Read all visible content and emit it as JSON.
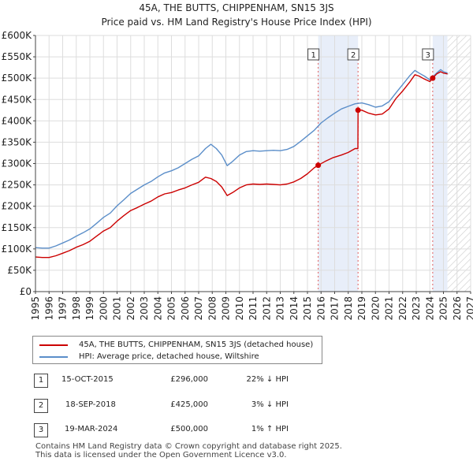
{
  "chart_data": {
    "type": "line",
    "title": "45A, THE BUTTS, CHIPPENHAM, SN15 3JS",
    "subtitle": "Price paid vs. HM Land Registry's House Price Index (HPI)",
    "xlabel": "",
    "ylabel": "",
    "xlim": [
      1995,
      2027
    ],
    "ylim": [
      0,
      600000
    ],
    "x_ticks": [
      1995,
      1996,
      1997,
      1998,
      1999,
      2000,
      2001,
      2002,
      2003,
      2004,
      2005,
      2006,
      2007,
      2008,
      2009,
      2010,
      2011,
      2012,
      2013,
      2014,
      2015,
      2016,
      2017,
      2018,
      2019,
      2020,
      2021,
      2022,
      2023,
      2024,
      2025,
      2026,
      2027
    ],
    "y_ticks": [
      {
        "value": 0,
        "label": "£0"
      },
      {
        "value": 50000,
        "label": "£50K"
      },
      {
        "value": 100000,
        "label": "£100K"
      },
      {
        "value": 150000,
        "label": "£150K"
      },
      {
        "value": 200000,
        "label": "£200K"
      },
      {
        "value": 250000,
        "label": "£250K"
      },
      {
        "value": 300000,
        "label": "£300K"
      },
      {
        "value": 350000,
        "label": "£350K"
      },
      {
        "value": 400000,
        "label": "£400K"
      },
      {
        "value": 450000,
        "label": "£450K"
      },
      {
        "value": 500000,
        "label": "£500K"
      },
      {
        "value": 550000,
        "label": "£550K"
      },
      {
        "value": 600000,
        "label": "£600K"
      }
    ],
    "grid": true,
    "forecast_start": 2025.3,
    "highlight_spans": [
      [
        2015.79,
        2018.72
      ],
      [
        2024.21,
        2025.3
      ]
    ],
    "series": [
      {
        "name": "45A, THE BUTTS, CHIPPENHAM, SN15 3JS (detached house)",
        "color": "#cc0000",
        "x": [
          1995.0,
          1995.5,
          1996.0,
          1996.5,
          1997.0,
          1997.5,
          1998.0,
          1998.5,
          1999.0,
          1999.5,
          2000.0,
          2000.5,
          2001.0,
          2001.5,
          2002.0,
          2002.5,
          2003.0,
          2003.5,
          2004.0,
          2004.5,
          2005.0,
          2005.5,
          2006.0,
          2006.5,
          2007.0,
          2007.5,
          2007.9,
          2008.3,
          2008.7,
          2009.1,
          2009.5,
          2010.0,
          2010.5,
          2011.0,
          2011.5,
          2012.0,
          2012.5,
          2013.0,
          2013.5,
          2014.0,
          2014.5,
          2015.0,
          2015.5,
          2015.79,
          2016.3,
          2016.9,
          2017.5,
          2018.0,
          2018.5,
          2018.71,
          2018.72,
          2019.0,
          2019.5,
          2020.0,
          2020.5,
          2021.0,
          2021.5,
          2022.0,
          2022.5,
          2022.9,
          2023.2,
          2023.6,
          2024.0,
          2024.21,
          2024.5,
          2024.8,
          2025.0,
          2025.3
        ],
        "values": [
          81000,
          80000,
          80000,
          84000,
          90000,
          96000,
          104000,
          110000,
          118000,
          130000,
          142000,
          150000,
          165000,
          178000,
          190000,
          197000,
          205000,
          212000,
          222000,
          229000,
          232000,
          238000,
          243000,
          250000,
          256000,
          268000,
          265000,
          258000,
          245000,
          225000,
          232000,
          243000,
          250000,
          252000,
          251000,
          252000,
          251000,
          250000,
          252000,
          257000,
          265000,
          276000,
          290000,
          296000,
          305000,
          314000,
          320000,
          326000,
          335000,
          335000,
          425000,
          425000,
          418000,
          414000,
          416000,
          428000,
          452000,
          470000,
          490000,
          508000,
          505000,
          498000,
          492000,
          500000,
          510000,
          515000,
          512000,
          510000
        ]
      },
      {
        "name": "HPI: Average price, detached house, Wiltshire",
        "color": "#5b8ec9",
        "x": [
          1995.0,
          1995.5,
          1996.0,
          1996.5,
          1997.0,
          1997.5,
          1998.0,
          1998.5,
          1999.0,
          1999.5,
          2000.0,
          2000.5,
          2001.0,
          2001.5,
          2002.0,
          2002.5,
          2003.0,
          2003.5,
          2004.0,
          2004.5,
          2005.0,
          2005.5,
          2006.0,
          2006.5,
          2007.0,
          2007.5,
          2007.9,
          2008.3,
          2008.7,
          2009.1,
          2009.5,
          2010.0,
          2010.5,
          2011.0,
          2011.5,
          2012.0,
          2012.5,
          2013.0,
          2013.5,
          2014.0,
          2014.5,
          2015.0,
          2015.5,
          2016.0,
          2016.5,
          2017.0,
          2017.5,
          2018.0,
          2018.5,
          2019.0,
          2019.5,
          2020.0,
          2020.5,
          2021.0,
          2021.5,
          2022.0,
          2022.5,
          2022.9,
          2023.2,
          2023.6,
          2024.0,
          2024.5,
          2024.8,
          2025.0,
          2025.3
        ],
        "values": [
          103000,
          102000,
          102000,
          107000,
          114000,
          121000,
          130000,
          138000,
          147000,
          160000,
          174000,
          184000,
          201000,
          215000,
          230000,
          240000,
          250000,
          258000,
          269000,
          278000,
          283000,
          290000,
          300000,
          310000,
          318000,
          335000,
          345000,
          335000,
          320000,
          295000,
          305000,
          320000,
          328000,
          330000,
          329000,
          330000,
          331000,
          330000,
          333000,
          340000,
          352000,
          365000,
          378000,
          395000,
          407000,
          418000,
          428000,
          434000,
          440000,
          442000,
          438000,
          432000,
          435000,
          445000,
          465000,
          485000,
          505000,
          518000,
          512000,
          505000,
          496000,
          512000,
          520000,
          515000,
          512000
        ]
      }
    ],
    "sale_markers": [
      {
        "label": "1",
        "x": 2015.79,
        "value": 296000
      },
      {
        "label": "2",
        "x": 2018.72,
        "value": 425000
      },
      {
        "label": "3",
        "x": 2024.21,
        "value": 500000
      }
    ]
  },
  "legend": {
    "items": [
      {
        "label": "45A, THE BUTTS, CHIPPENHAM, SN15 3JS (detached house)",
        "color": "#cc0000"
      },
      {
        "label": "HPI: Average price, detached house, Wiltshire",
        "color": "#5b8ec9"
      }
    ]
  },
  "sales_table": {
    "rows": [
      {
        "num": "1",
        "date": "15-OCT-2015",
        "price": "£296,000",
        "hpi": "22% ↓ HPI"
      },
      {
        "num": "2",
        "date": "18-SEP-2018",
        "price": "£425,000",
        "hpi": "3% ↓ HPI"
      },
      {
        "num": "3",
        "date": "19-MAR-2024",
        "price": "£500,000",
        "hpi": "1% ↑ HPI"
      }
    ]
  },
  "footer": {
    "line1": "Contains HM Land Registry data © Crown copyright and database right 2025.",
    "line2": "This data is licensed under the Open Government Licence v3.0."
  }
}
